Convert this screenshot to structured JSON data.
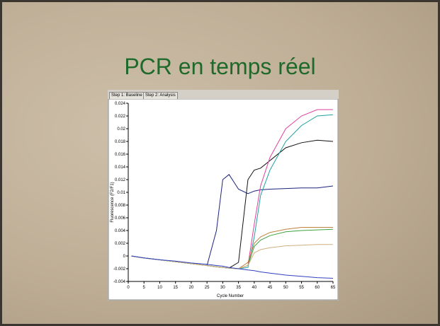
{
  "slide_title": "PCR en temps réel",
  "tabs": [
    "Step 1: Baseline",
    "Step 2: Analysis"
  ],
  "chart_data": {
    "type": "line",
    "x_label": "Cycle Number",
    "y_label": "Fluorescence (F2/F1)",
    "x": [
      1,
      5,
      10,
      15,
      20,
      25,
      28,
      30,
      32,
      35,
      38,
      40,
      42,
      45,
      50,
      55,
      60,
      65
    ],
    "series": [
      {
        "color": "#1a237e",
        "values": [
          0,
          -0.0003,
          -0.0006,
          -0.0009,
          -0.0012,
          -0.0015,
          0.004,
          0.012,
          0.0128,
          0.0105,
          0.0098,
          0.0102,
          0.0104,
          0.0105,
          0.0106,
          0.0107,
          0.0107,
          0.011
        ]
      },
      {
        "color": "#111111",
        "values": [
          0,
          -0.0003,
          -0.0006,
          -0.0009,
          -0.0012,
          -0.0015,
          -0.0017,
          -0.0018,
          -0.0019,
          -0.001,
          0.012,
          0.0135,
          0.0138,
          0.015,
          0.017,
          0.0178,
          0.0182,
          0.018
        ]
      },
      {
        "color": "#e040a0",
        "values": [
          0,
          -0.0003,
          -0.0006,
          -0.0009,
          -0.0012,
          -0.0015,
          -0.0017,
          -0.0018,
          -0.0019,
          -0.002,
          -0.0015,
          0.005,
          0.011,
          0.0155,
          0.02,
          0.022,
          0.023,
          0.023
        ]
      },
      {
        "color": "#20a0a0",
        "values": [
          0,
          -0.0003,
          -0.0006,
          -0.0009,
          -0.0012,
          -0.0015,
          -0.0017,
          -0.0018,
          -0.0019,
          -0.002,
          -0.0018,
          0.003,
          0.0095,
          0.0135,
          0.018,
          0.0205,
          0.022,
          0.0222
        ]
      },
      {
        "color": "#c08040",
        "values": [
          0,
          -0.0003,
          -0.0006,
          -0.0009,
          -0.0012,
          -0.0015,
          -0.0017,
          -0.0018,
          -0.0019,
          -0.002,
          -0.001,
          0.002,
          0.003,
          0.0037,
          0.0042,
          0.0045,
          0.0045,
          0.0045
        ]
      },
      {
        "color": "#40a040",
        "values": [
          0,
          -0.0003,
          -0.0006,
          -0.0009,
          -0.0012,
          -0.0015,
          -0.0017,
          -0.0018,
          -0.0019,
          -0.002,
          -0.0015,
          0.0015,
          0.0025,
          0.0032,
          0.0038,
          0.004,
          0.0041,
          0.0042
        ]
      },
      {
        "color": "#d0b080",
        "values": [
          0,
          -0.0003,
          -0.0006,
          -0.0009,
          -0.0012,
          -0.0015,
          -0.0017,
          -0.0018,
          -0.0019,
          -0.002,
          -0.0015,
          0.0005,
          0.001,
          0.0013,
          0.0016,
          0.0017,
          0.0018,
          0.0018
        ]
      },
      {
        "color": "#3040c0",
        "values": [
          0,
          -0.0003,
          -0.0006,
          -0.0008,
          -0.0011,
          -0.0013,
          -0.0015,
          -0.0016,
          -0.0018,
          -0.002,
          -0.0022,
          -0.0023,
          -0.0025,
          -0.0027,
          -0.003,
          -0.0032,
          -0.0034,
          -0.0035
        ]
      }
    ],
    "xlim": [
      0,
      65
    ],
    "xticks": [
      0,
      5,
      10,
      15,
      20,
      25,
      30,
      35,
      40,
      45,
      50,
      55,
      60,
      65
    ],
    "ylim": [
      -0.004,
      0.024
    ],
    "yticks": [
      -0.004,
      -0.002,
      0,
      0.002,
      0.004,
      0.006,
      0.008,
      0.01,
      0.012,
      0.014,
      0.016,
      0.018,
      0.02,
      0.022,
      0.024
    ],
    "grid": false
  }
}
